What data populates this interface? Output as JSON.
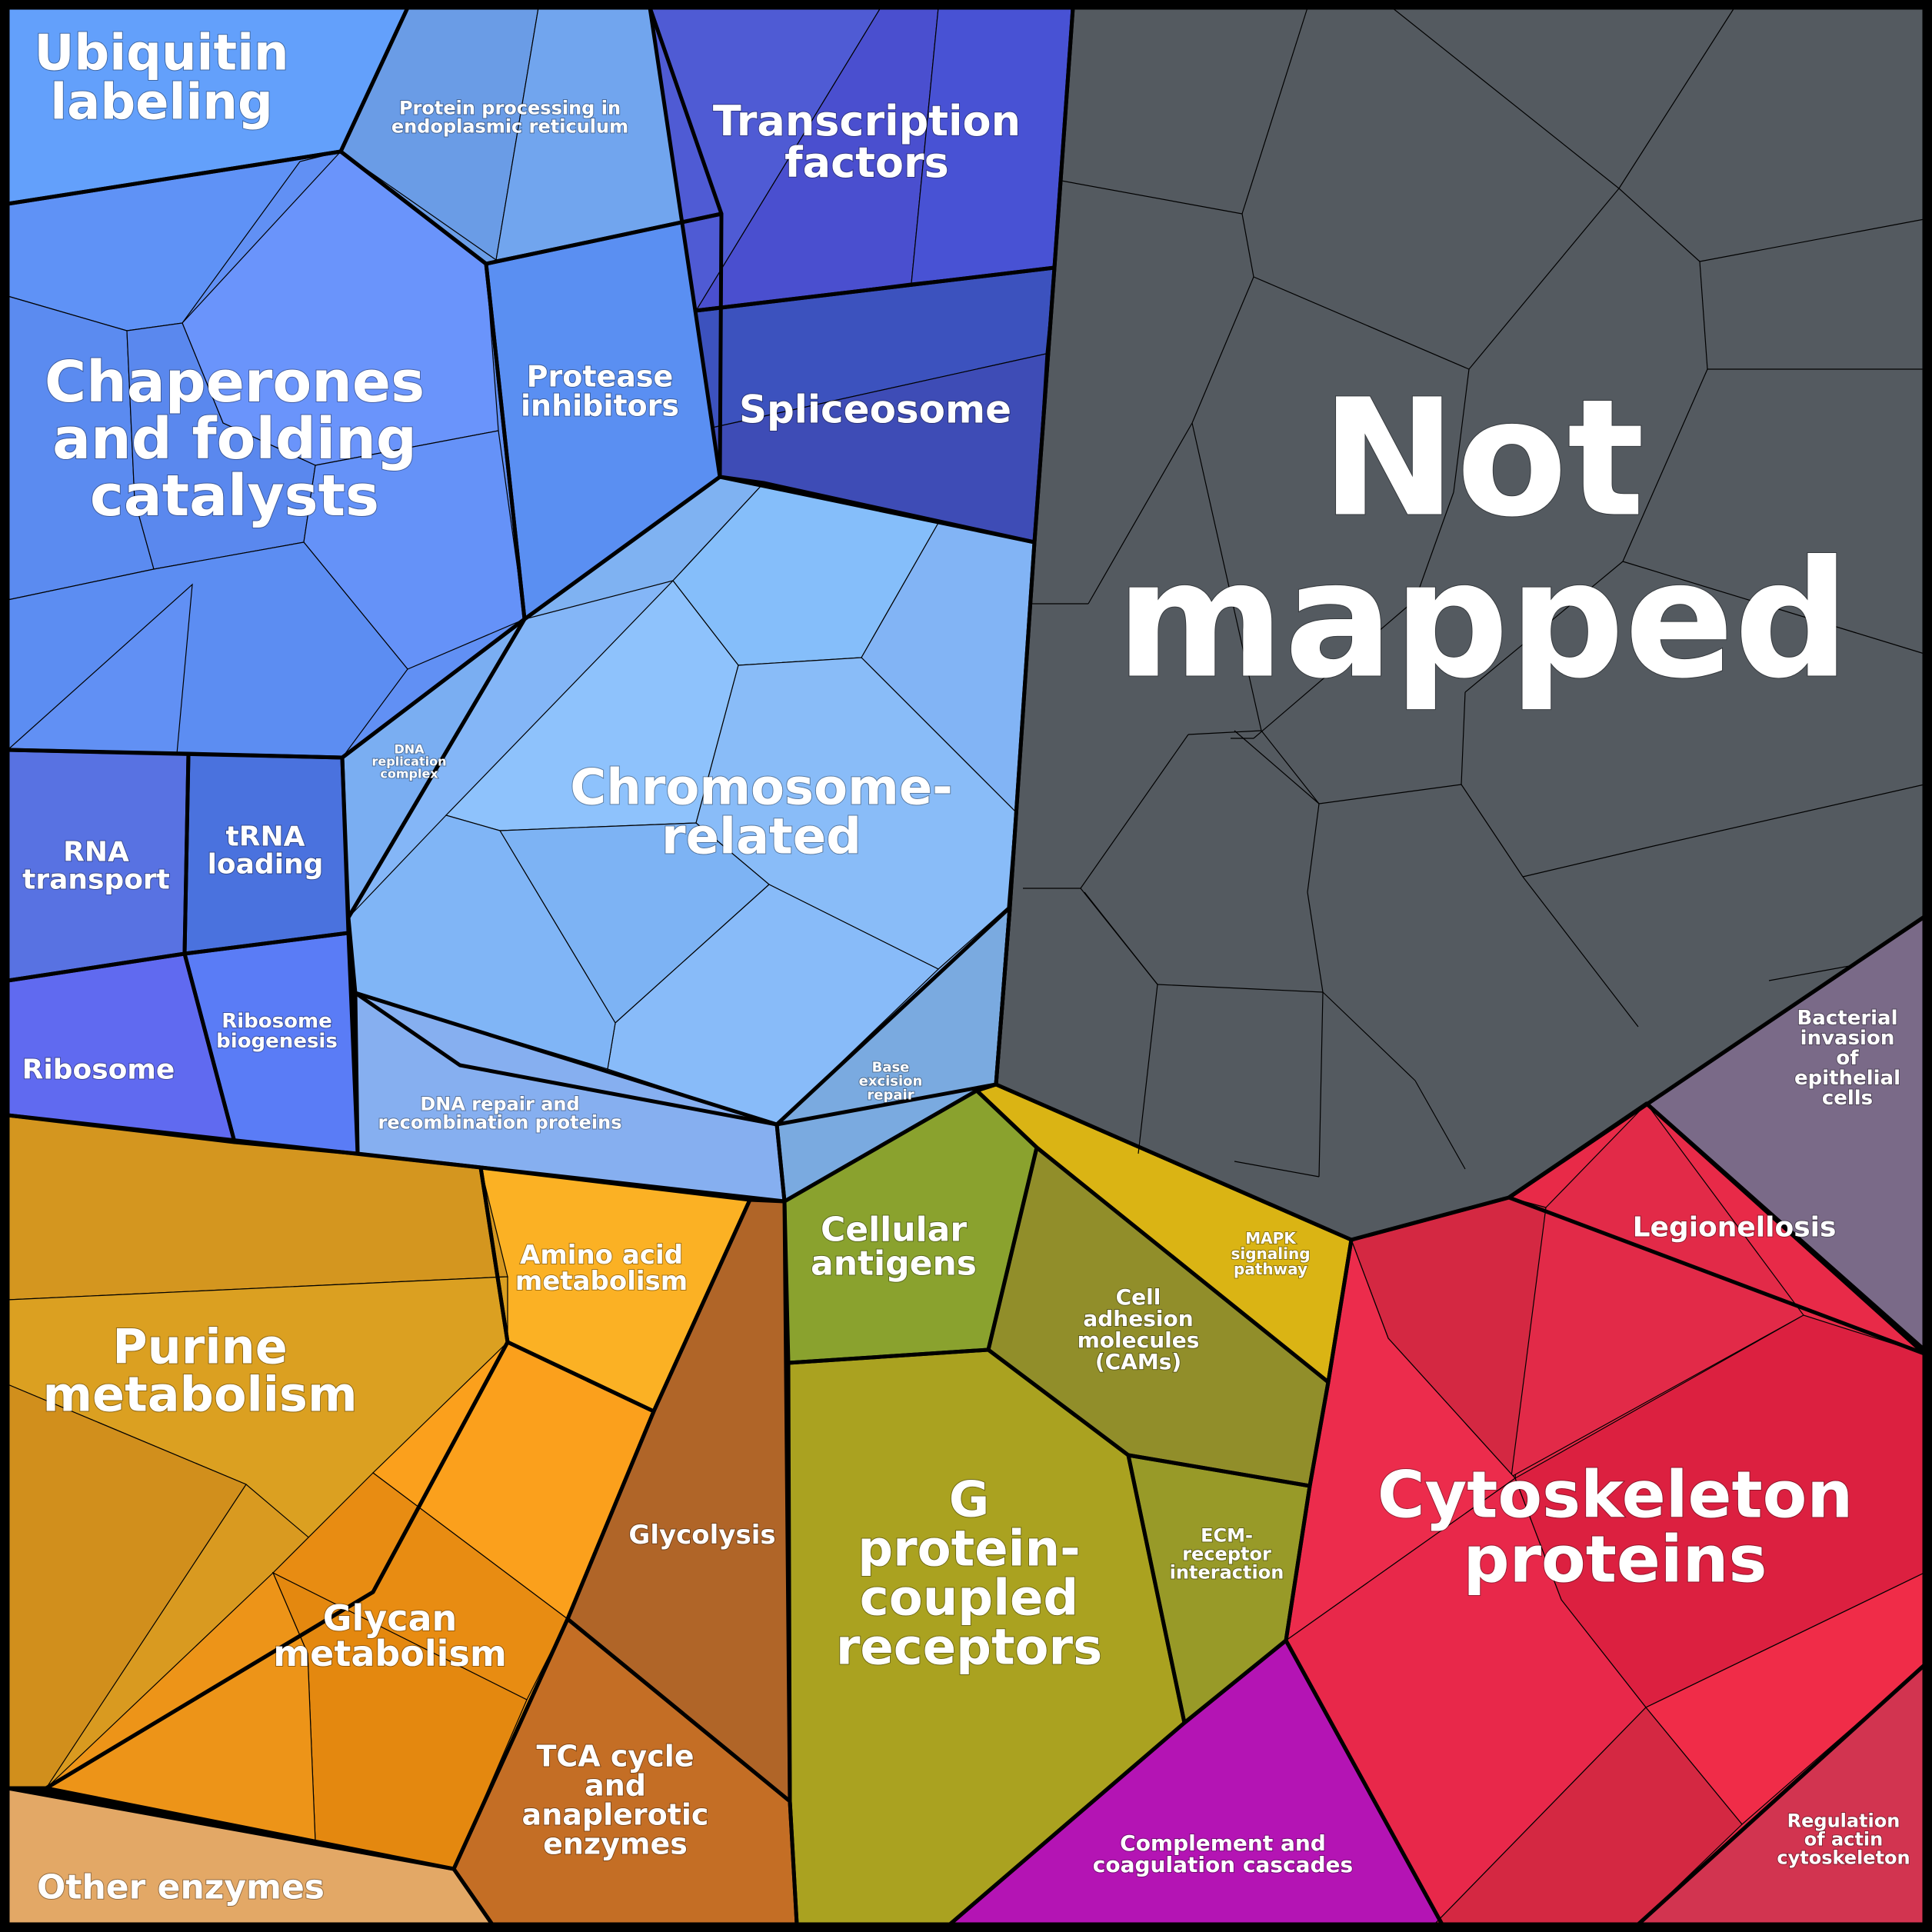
{
  "diagram": {
    "type": "voronoi-treemap",
    "groups": [
      {
        "id": "ubiquitin",
        "label": [
          "Ubiquitin",
          "labeling"
        ],
        "color": "#5b9cf8",
        "sub": [
          "#63a0fb",
          "#5a98f6"
        ]
      },
      {
        "id": "protein-processing",
        "label": [
          "Protein processing in",
          "endoplasmic reticulum"
        ],
        "color": "#6b9ee8",
        "sub": [
          "#6a9ce6",
          "#71a5ee"
        ]
      },
      {
        "id": "chaperones",
        "label": [
          "Chaperones",
          "and folding",
          "catalysts"
        ],
        "color": "#6190f4",
        "sub": [
          "#5f92f6",
          "#6a94fb",
          "#5b8bf0",
          "#5a88ee",
          "#6592f8",
          "#5c8df2"
        ]
      },
      {
        "id": "protease-inhibitors",
        "label": [
          "Protease",
          "inhibitors"
        ],
        "color": "#5a8ff2",
        "sub": []
      },
      {
        "id": "transcription-factors",
        "label": [
          "Transcription",
          "factors"
        ],
        "color": "#4a55d2",
        "sub": [
          "#4f5bd4",
          "#4a4fcf",
          "#4852d4"
        ]
      },
      {
        "id": "spliceosome",
        "label": [
          "Spliceosome"
        ],
        "color": "#3e4fba",
        "sub": [
          "#3c52be",
          "#3e4cb6"
        ]
      },
      {
        "id": "chromosome",
        "label": [
          "Chromosome-",
          "related"
        ],
        "color": "#84b6f7",
        "sub": [
          "#7fb2f2",
          "#85befa",
          "#82b4f5",
          "#8ec2fc",
          "#89bcf8",
          "#7db3f4",
          "#88bbf9",
          "#80b5f6"
        ]
      },
      {
        "id": "dna-replication",
        "label": [
          "DNA",
          "replication",
          "complex"
        ],
        "color": "#7aaef2",
        "sub": []
      },
      {
        "id": "dna-repair",
        "label": [
          "DNA repair and",
          "recombination proteins"
        ],
        "color": "#86aff0",
        "sub": []
      },
      {
        "id": "base-excision",
        "label": [
          "Base",
          "excision",
          "repair"
        ],
        "color": "#7aaae0",
        "sub": []
      },
      {
        "id": "rna-transport",
        "label": [
          "RNA",
          "transport"
        ],
        "color": "#5872e2",
        "sub": []
      },
      {
        "id": "trna-loading",
        "label": [
          "tRNA",
          "loading"
        ],
        "color": "#4a72de",
        "sub": []
      },
      {
        "id": "ribosome",
        "label": [
          "Ribosome"
        ],
        "color": "#606af0",
        "sub": []
      },
      {
        "id": "ribosome-biogenesis",
        "label": [
          "Ribosome",
          "biogenesis"
        ],
        "color": "#5a7cf6",
        "sub": []
      },
      {
        "id": "not-mapped",
        "label": [
          "Not",
          "mapped"
        ],
        "color": "#545a60",
        "sub": []
      },
      {
        "id": "bacterial-invasion",
        "label": [
          "Bacterial",
          "invasion",
          "of",
          "epithelial",
          "cells"
        ],
        "color": "#7a6a88",
        "sub": []
      },
      {
        "id": "legionellosis",
        "label": [
          "Legionellosis"
        ],
        "color": "#6e6278",
        "sub": []
      },
      {
        "id": "purine",
        "label": [
          "Purine",
          "metabolism"
        ],
        "color": "#d99a20",
        "sub": [
          "#d4961f",
          "#dba021",
          "#d18f1c"
        ]
      },
      {
        "id": "amino-acid",
        "label": [
          "Amino acid",
          "metabolism"
        ],
        "color": "#fbb124",
        "sub": []
      },
      {
        "id": "glycan",
        "label": [
          "Glycan",
          "metabolism"
        ],
        "color": "#f09a1a",
        "sub": [
          "#fba01c",
          "#e88c12",
          "#e4880f",
          "#ed9418"
        ]
      },
      {
        "id": "other-enzymes",
        "label": [
          "Other enzymes"
        ],
        "color": "#e3a866",
        "sub": []
      },
      {
        "id": "glycolysis",
        "label": [
          "Glycolysis"
        ],
        "color": "#b06528",
        "sub": []
      },
      {
        "id": "tca",
        "label": [
          "TCA cycle",
          "and",
          "anaplerotic",
          "enzymes"
        ],
        "color": "#c46e25",
        "sub": []
      },
      {
        "id": "cellular-antigens",
        "label": [
          "Cellular",
          "antigens"
        ],
        "color": "#8aa22e",
        "sub": []
      },
      {
        "id": "cell-adhesion",
        "label": [
          "Cell",
          "adhesion",
          "molecules",
          "(CAMs)"
        ],
        "color": "#918e2a",
        "sub": []
      },
      {
        "id": "mapk",
        "label": [
          "MAPK",
          "signaling",
          "pathway"
        ],
        "color": "#dab414",
        "sub": []
      },
      {
        "id": "ecm",
        "label": [
          "ECM-",
          "receptor",
          "interaction"
        ],
        "color": "#989a28",
        "sub": []
      },
      {
        "id": "gpcr",
        "label": [
          "G",
          "protein-",
          "coupled",
          "receptors"
        ],
        "color": "#aaa220",
        "sub": []
      },
      {
        "id": "complement",
        "label": [
          "Complement and",
          "coagulation cascades"
        ],
        "color": "#b414b4",
        "sub": []
      },
      {
        "id": "cytoskeleton",
        "label": [
          "Cytoskeleton",
          "proteins"
        ],
        "color": "#e82a48",
        "sub": [
          "#d42842",
          "#e22a48",
          "#ec2c4c",
          "#dc2040",
          "#e8284a",
          "#f02c48"
        ]
      },
      {
        "id": "regulation-actin",
        "label": [
          "Regulation",
          "of actin",
          "cytoskeleton"
        ],
        "color": "#d23450",
        "sub": []
      }
    ]
  }
}
